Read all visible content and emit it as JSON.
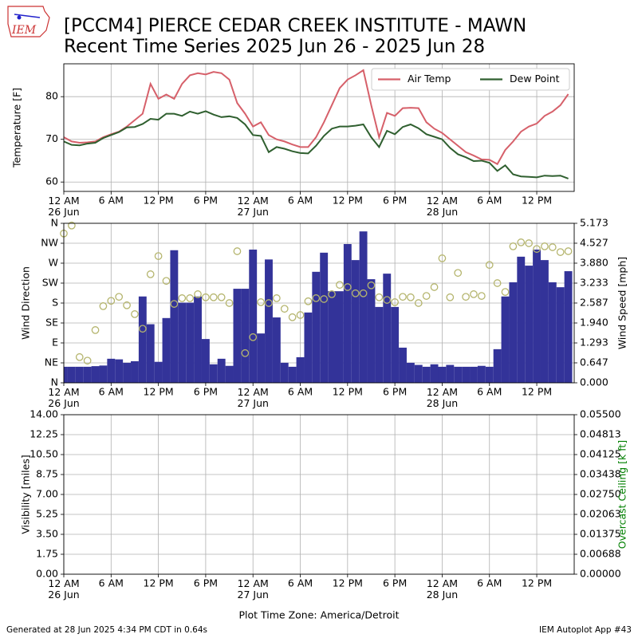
{
  "header": {
    "logo_text": "IEM",
    "title": "[PCCM4] PIERCE CEDAR CREEK INSTITUTE - MAWN",
    "subtitle": "Recent Time Series 2025 Jun 26 - 2025 Jun 28"
  },
  "footer": {
    "generated": "Generated at 28 Jun 2025 4:34 PM CDT in 0.64s",
    "app": "IEM Autoplot App #43"
  },
  "chart_data": [
    {
      "type": "line",
      "ylabel": "Temperature [F]",
      "ylim": [
        57.8,
        87.7
      ],
      "yticks": [
        60,
        70,
        80
      ],
      "grid": true,
      "legend": "upper right",
      "xlim": [
        "2025-06-26 00:00",
        "2025-06-28 16:45"
      ],
      "xticks": [
        {
          "value": "2025-06-26 00:00",
          "label": "12 AM\n26 Jun"
        },
        {
          "value": "2025-06-26 06:00",
          "label": "6 AM"
        },
        {
          "value": "2025-06-26 12:00",
          "label": "12 PM"
        },
        {
          "value": "2025-06-26 18:00",
          "label": "6 PM"
        },
        {
          "value": "2025-06-27 00:00",
          "label": "12 AM\n27 Jun"
        },
        {
          "value": "2025-06-27 06:00",
          "label": "6 AM"
        },
        {
          "value": "2025-06-27 12:00",
          "label": "12 PM"
        },
        {
          "value": "2025-06-27 18:00",
          "label": "6 PM"
        },
        {
          "value": "2025-06-28 00:00",
          "label": "12 AM\n28 Jun"
        },
        {
          "value": "2025-06-28 06:00",
          "label": "6 AM"
        },
        {
          "value": "2025-06-28 12:00",
          "label": "12 PM"
        }
      ],
      "x": [
        "2025-06-26 00:00",
        "2025-06-26 01:00",
        "2025-06-26 02:00",
        "2025-06-26 03:00",
        "2025-06-26 04:00",
        "2025-06-26 05:00",
        "2025-06-26 06:00",
        "2025-06-26 07:00",
        "2025-06-26 08:00",
        "2025-06-26 09:00",
        "2025-06-26 10:00",
        "2025-06-26 11:00",
        "2025-06-26 12:00",
        "2025-06-26 13:00",
        "2025-06-26 14:00",
        "2025-06-26 15:00",
        "2025-06-26 16:00",
        "2025-06-26 17:00",
        "2025-06-26 18:00",
        "2025-06-26 19:00",
        "2025-06-26 20:00",
        "2025-06-26 21:00",
        "2025-06-26 22:00",
        "2025-06-26 23:00",
        "2025-06-27 00:00",
        "2025-06-27 01:00",
        "2025-06-27 02:00",
        "2025-06-27 03:00",
        "2025-06-27 04:00",
        "2025-06-27 05:00",
        "2025-06-27 06:00",
        "2025-06-27 07:00",
        "2025-06-27 08:00",
        "2025-06-27 09:00",
        "2025-06-27 10:00",
        "2025-06-27 11:00",
        "2025-06-27 12:00",
        "2025-06-27 13:00",
        "2025-06-27 14:00",
        "2025-06-27 15:00",
        "2025-06-27 16:00",
        "2025-06-27 17:00",
        "2025-06-27 18:00",
        "2025-06-27 19:00",
        "2025-06-27 20:00",
        "2025-06-27 21:00",
        "2025-06-27 22:00",
        "2025-06-27 23:00",
        "2025-06-28 00:00",
        "2025-06-28 01:00",
        "2025-06-28 02:00",
        "2025-06-28 03:00",
        "2025-06-28 04:00",
        "2025-06-28 05:00",
        "2025-06-28 06:00",
        "2025-06-28 07:00",
        "2025-06-28 08:00",
        "2025-06-28 09:00",
        "2025-06-28 10:00",
        "2025-06-28 11:00",
        "2025-06-28 12:00",
        "2025-06-28 13:00",
        "2025-06-28 14:00",
        "2025-06-28 15:00",
        "2025-06-28 16:00"
      ],
      "series": [
        {
          "name": "Air Temp",
          "color": "#d6606a",
          "type": "line",
          "values": [
            70.5,
            69.5,
            69.2,
            69.3,
            69.5,
            70.5,
            71.2,
            71.8,
            73,
            74.5,
            76,
            83,
            79.5,
            80.5,
            79.5,
            83,
            85,
            85.5,
            85.2,
            85.8,
            85.5,
            84,
            78.5,
            76,
            73,
            74,
            71,
            70,
            69.5,
            68.8,
            68.2,
            68.2,
            70.5,
            74,
            78,
            82,
            84,
            85,
            86.2,
            78,
            70.5,
            76.2,
            75.5,
            77.3,
            77.4,
            77.3,
            74,
            72.5,
            71.5,
            70,
            68.5,
            67,
            66.2,
            65.3,
            65.2,
            64.2,
            67.5,
            69.5,
            71.8,
            73,
            73.7,
            75.5,
            76.5,
            78,
            80.6
          ]
        },
        {
          "name": "Dew Point",
          "color": "#2f5f2f",
          "type": "line",
          "values": [
            69.5,
            68.7,
            68.6,
            69,
            69.2,
            70.3,
            71,
            71.7,
            72.8,
            72.9,
            73.6,
            74.8,
            74.6,
            76,
            76,
            75.5,
            76.5,
            76,
            76.6,
            75.8,
            75.2,
            75.4,
            75,
            73.5,
            71,
            70.8,
            67,
            68.2,
            67.8,
            67.2,
            66.8,
            66.7,
            68.5,
            70.8,
            72.5,
            73,
            73,
            73.2,
            73.5,
            70.5,
            68.2,
            72,
            71.2,
            72.9,
            73.5,
            72.6,
            71.2,
            70.6,
            70,
            68,
            66.5,
            65.8,
            64.9,
            65,
            64.5,
            62.6,
            63.9,
            61.8,
            61.3,
            61.2,
            61.1,
            61.5,
            61.4,
            61.5,
            60.8
          ]
        }
      ]
    },
    {
      "type": "combo",
      "ylabel": "Wind Direction",
      "y2label": "Wind Speed [mph]",
      "grid": true,
      "ylim": [
        0,
        360
      ],
      "yticks": [
        {
          "value": 0,
          "label": "N"
        },
        {
          "value": 45,
          "label": "NE"
        },
        {
          "value": 90,
          "label": "E"
        },
        {
          "value": 135,
          "label": "SE"
        },
        {
          "value": 180,
          "label": "S"
        },
        {
          "value": 225,
          "label": "SW"
        },
        {
          "value": 270,
          "label": "W"
        },
        {
          "value": 315,
          "label": "NW"
        },
        {
          "value": 360,
          "label": "N"
        }
      ],
      "y2lim": [
        0,
        5.173
      ],
      "y2ticks": [
        {
          "value": 0,
          "label": "0.000"
        },
        {
          "value": 0.647,
          "label": "0.647"
        },
        {
          "value": 1.293,
          "label": "1.293"
        },
        {
          "value": 1.94,
          "label": "1.940"
        },
        {
          "value": 2.587,
          "label": "2.587"
        },
        3.233,
        {
          "value": 3.88,
          "label": "3.880"
        },
        4.527,
        5.173
      ],
      "xlim": [
        "2025-06-26 00:00",
        "2025-06-28 16:45"
      ],
      "xticks": [
        {
          "value": "2025-06-26 00:00",
          "label": "12 AM\n26 Jun"
        },
        {
          "value": "2025-06-26 06:00",
          "label": "6 AM"
        },
        {
          "value": "2025-06-26 12:00",
          "label": "12 PM"
        },
        {
          "value": "2025-06-26 18:00",
          "label": "6 PM"
        },
        {
          "value": "2025-06-27 00:00",
          "label": "12 AM\n27 Jun"
        },
        {
          "value": "2025-06-27 06:00",
          "label": "6 AM"
        },
        {
          "value": "2025-06-27 12:00",
          "label": "12 PM"
        },
        {
          "value": "2025-06-27 18:00",
          "label": "6 PM"
        },
        {
          "value": "2025-06-28 00:00",
          "label": "12 AM\n28 Jun"
        },
        {
          "value": "2025-06-28 06:00",
          "label": "6 AM"
        },
        {
          "value": "2025-06-28 12:00",
          "label": "12 PM"
        }
      ],
      "x": [
        "2025-06-26 00:00",
        "2025-06-26 01:00",
        "2025-06-26 02:00",
        "2025-06-26 03:00",
        "2025-06-26 04:00",
        "2025-06-26 05:00",
        "2025-06-26 06:00",
        "2025-06-26 07:00",
        "2025-06-26 08:00",
        "2025-06-26 09:00",
        "2025-06-26 10:00",
        "2025-06-26 11:00",
        "2025-06-26 12:00",
        "2025-06-26 13:00",
        "2025-06-26 14:00",
        "2025-06-26 15:00",
        "2025-06-26 16:00",
        "2025-06-26 17:00",
        "2025-06-26 18:00",
        "2025-06-26 19:00",
        "2025-06-26 20:00",
        "2025-06-26 21:00",
        "2025-06-26 22:00",
        "2025-06-26 23:00",
        "2025-06-27 00:00",
        "2025-06-27 01:00",
        "2025-06-27 02:00",
        "2025-06-27 03:00",
        "2025-06-27 04:00",
        "2025-06-27 05:00",
        "2025-06-27 06:00",
        "2025-06-27 07:00",
        "2025-06-27 08:00",
        "2025-06-27 09:00",
        "2025-06-27 10:00",
        "2025-06-27 11:00",
        "2025-06-27 12:00",
        "2025-06-27 13:00",
        "2025-06-27 14:00",
        "2025-06-27 15:00",
        "2025-06-27 16:00",
        "2025-06-27 17:00",
        "2025-06-27 18:00",
        "2025-06-27 19:00",
        "2025-06-27 20:00",
        "2025-06-27 21:00",
        "2025-06-27 22:00",
        "2025-06-27 23:00",
        "2025-06-28 00:00",
        "2025-06-28 01:00",
        "2025-06-28 02:00",
        "2025-06-28 03:00",
        "2025-06-28 04:00",
        "2025-06-28 05:00",
        "2025-06-28 06:00",
        "2025-06-28 07:00",
        "2025-06-28 08:00",
        "2025-06-28 09:00",
        "2025-06-28 10:00",
        "2025-06-28 11:00",
        "2025-06-28 12:00",
        "2025-06-28 13:00",
        "2025-06-28 14:00",
        "2025-06-28 15:00",
        "2025-06-28 16:00"
      ],
      "series": [
        {
          "type": "bar",
          "axis": "y2",
          "color": "#333399",
          "values": [
            0.52,
            0.52,
            0.52,
            0.52,
            0.54,
            0.56,
            0.78,
            0.76,
            0.65,
            0.7,
            2.8,
            1.9,
            0.68,
            2.1,
            4.3,
            2.6,
            2.6,
            2.8,
            1.42,
            0.6,
            0.78,
            0.55,
            3.05,
            3.05,
            4.32,
            1.6,
            4.0,
            2.12,
            0.65,
            0.52,
            0.83,
            2.28,
            3.6,
            4.22,
            2.97,
            2.97,
            4.5,
            3.98,
            4.91,
            3.36,
            2.46,
            3.54,
            2.46,
            1.14,
            0.65,
            0.58,
            0.52,
            0.6,
            0.52,
            0.58,
            0.52,
            0.52,
            0.52,
            0.55,
            0.52,
            1.09,
            2.8,
            3.26,
            4.09,
            3.8,
            4.32,
            3.98,
            3.26,
            3.1,
            3.62
          ]
        },
        {
          "type": "scatter",
          "color": "#b5b56e",
          "values": [
            337,
            355,
            58,
            50,
            119,
            173,
            185,
            194,
            175,
            155,
            122,
            245,
            286,
            230,
            178,
            191,
            191,
            200,
            193,
            193,
            193,
            180,
            297,
            67,
            103,
            182,
            180,
            191,
            167,
            148,
            153,
            184,
            191,
            189,
            200,
            221,
            216,
            202,
            202,
            220,
            193,
            187,
            182,
            194,
            193,
            180,
            196,
            216,
            281,
            193,
            248,
            194,
            200,
            196,
            266,
            225,
            205,
            308,
            317,
            315,
            302,
            308,
            306,
            295,
            297
          ]
        }
      ]
    },
    {
      "type": "line",
      "ylabel": "Visibility [miles]",
      "y2label": "Overcast Ceiling [k ft]",
      "y2label_color": "#008000",
      "grid": true,
      "ylim": [
        0,
        14
      ],
      "yticks": [
        {
          "value": 0,
          "label": "0.00"
        },
        1.75,
        {
          "value": 3.5,
          "label": "3.50"
        },
        5.25,
        {
          "value": 7,
          "label": "7.00"
        },
        8.75,
        {
          "value": 10.5,
          "label": "10.50"
        },
        12.25,
        {
          "value": 14,
          "label": "14.00"
        }
      ],
      "y2lim": [
        0,
        0.055
      ],
      "y2ticks": [
        {
          "value": 0,
          "label": "0.00000"
        },
        {
          "value": 0.006875,
          "label": "0.00688"
        },
        {
          "value": 0.01375,
          "label": "0.01375"
        },
        {
          "value": 0.020625,
          "label": "0.02063"
        },
        {
          "value": 0.0275,
          "label": "0.02750"
        },
        {
          "value": 0.034375,
          "label": "0.03438"
        },
        {
          "value": 0.04125,
          "label": "0.04125"
        },
        {
          "value": 0.048125,
          "label": "0.04813"
        },
        {
          "value": 0.055,
          "label": "0.05500"
        }
      ],
      "xlabel": "Plot Time Zone: America/Detroit",
      "xlim": [
        "2025-06-26 00:00",
        "2025-06-28 16:45"
      ],
      "xticks": [
        {
          "value": "2025-06-26 00:00",
          "label": "12 AM\n26 Jun"
        },
        {
          "value": "2025-06-26 06:00",
          "label": "6 AM"
        },
        {
          "value": "2025-06-26 12:00",
          "label": "12 PM"
        },
        {
          "value": "2025-06-26 18:00",
          "label": "6 PM"
        },
        {
          "value": "2025-06-27 00:00",
          "label": "12 AM\n27 Jun"
        },
        {
          "value": "2025-06-27 06:00",
          "label": "6 AM"
        },
        {
          "value": "2025-06-27 12:00",
          "label": "12 PM"
        },
        {
          "value": "2025-06-27 18:00",
          "label": "6 PM"
        },
        {
          "value": "2025-06-28 00:00",
          "label": "12 AM\n28 Jun"
        },
        {
          "value": "2025-06-28 06:00",
          "label": "6 AM"
        },
        {
          "value": "2025-06-28 12:00",
          "label": "12 PM"
        }
      ],
      "series": []
    }
  ]
}
